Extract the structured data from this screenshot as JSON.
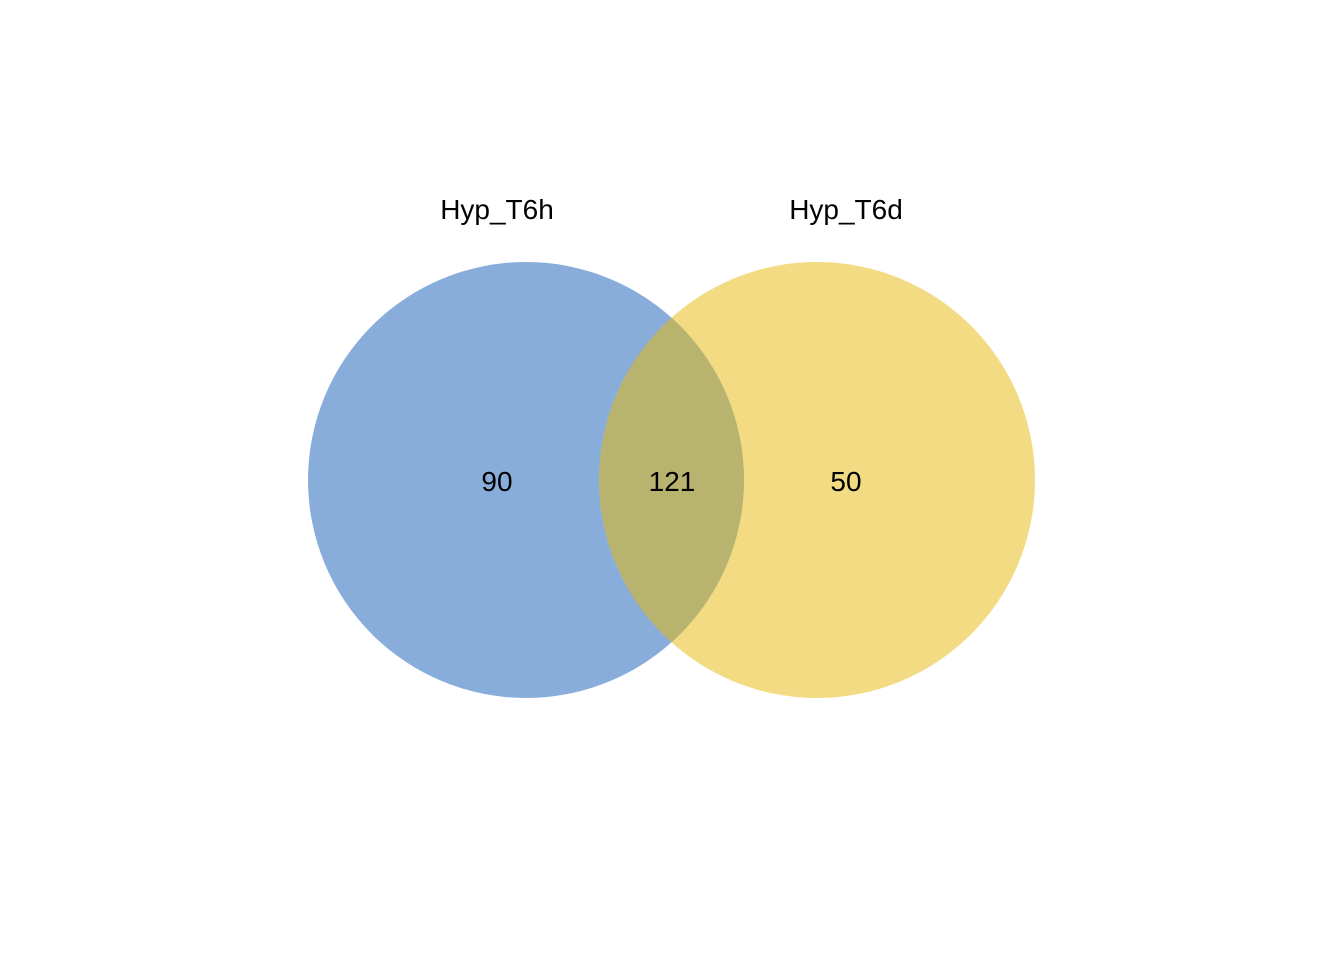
{
  "chart_data": {
    "type": "venn",
    "sets": [
      {
        "name": "Hyp_T6h",
        "color": "#6b98d2",
        "only": 90
      },
      {
        "name": "Hyp_T6d",
        "color": "#eecc50",
        "only": 50
      }
    ],
    "intersection": 121,
    "overlap_color": "#b8b36f"
  }
}
